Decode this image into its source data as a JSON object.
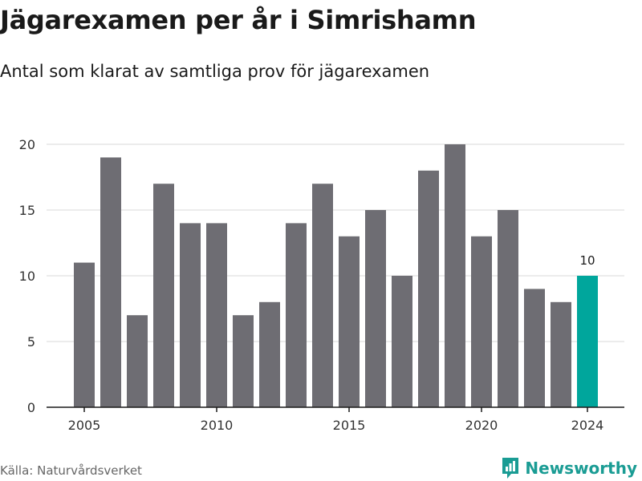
{
  "header": {
    "title": "Jägarexamen per år i Simrishamn",
    "subtitle": "Antal som klarat av samtliga prov för jägarexamen"
  },
  "footer": {
    "source": "Källa: Naturvårdsverket",
    "brand": "Newsworthy",
    "brand_icon": "newsworthy-logo-icon"
  },
  "colors": {
    "bar": "#6e6d73",
    "highlight": "#00a69c",
    "grid": "#d9d9d9",
    "baseline": "#1a1a1a",
    "brand": "#1a9c94"
  },
  "chart_data": {
    "type": "bar",
    "x": [
      2005,
      2006,
      2007,
      2008,
      2009,
      2010,
      2011,
      2012,
      2013,
      2014,
      2015,
      2016,
      2017,
      2018,
      2019,
      2020,
      2021,
      2022,
      2023,
      2024
    ],
    "values": [
      11,
      19,
      7,
      17,
      14,
      14,
      7,
      8,
      14,
      17,
      13,
      15,
      10,
      18,
      20,
      13,
      15,
      9,
      8,
      10
    ],
    "x_tick_labels": [
      "2005",
      "2010",
      "2015",
      "2020",
      "2024"
    ],
    "y_ticks": [
      0,
      5,
      10,
      15,
      20
    ],
    "ylim": [
      0,
      20
    ],
    "grid": true,
    "highlight": {
      "x": 2024,
      "label": "10"
    },
    "xlabel": "",
    "ylabel": ""
  }
}
